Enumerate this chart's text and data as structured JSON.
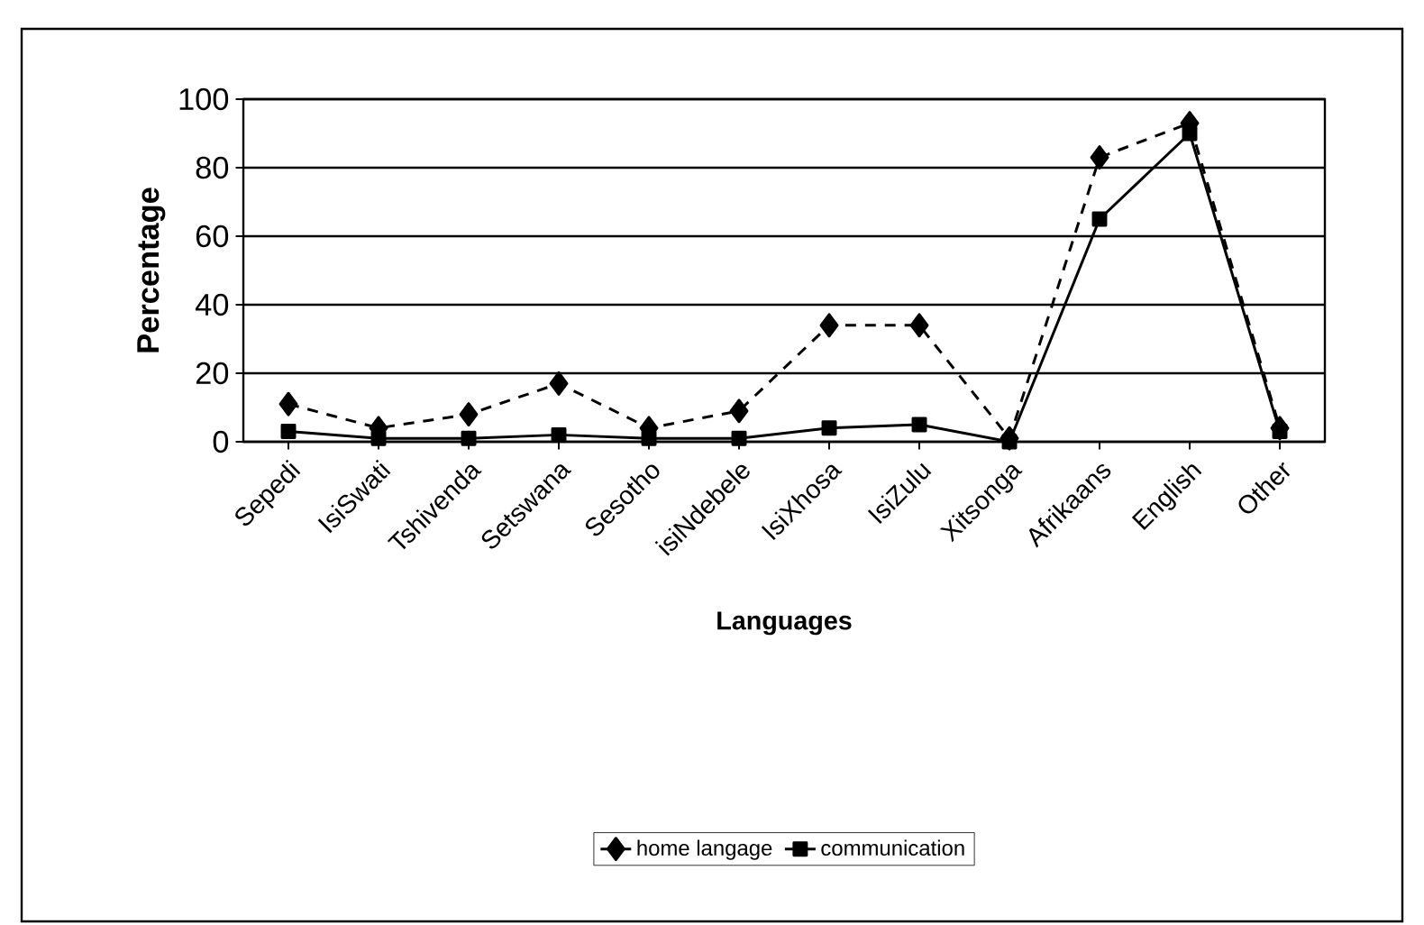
{
  "chart_data": {
    "type": "line",
    "xlabel": "Languages",
    "ylabel": "Percentage",
    "categories": [
      "Sepedi",
      "IsiSwati",
      "Tshivenda",
      "Setswana",
      "Sesotho",
      "isiNdebele",
      "IsiXhosa",
      "IsiZulu",
      "Xitsonga",
      "Afrikaans",
      "English",
      "Other"
    ],
    "series": [
      {
        "name": "home langage",
        "color": "#000000",
        "marker": "diamond",
        "line_style": "dashed",
        "values": [
          11,
          4,
          8,
          17,
          4,
          9,
          34,
          34,
          1,
          83,
          93,
          4
        ]
      },
      {
        "name": "communication",
        "color": "#000000",
        "marker": "square",
        "line_style": "solid",
        "values": [
          3,
          1,
          1,
          2,
          1,
          1,
          4,
          5,
          0,
          65,
          90,
          3
        ]
      }
    ],
    "ylim": [
      0,
      100
    ],
    "yticks": [
      0,
      20,
      40,
      60,
      80,
      100
    ],
    "grid": "y",
    "legend": "bottom"
  }
}
